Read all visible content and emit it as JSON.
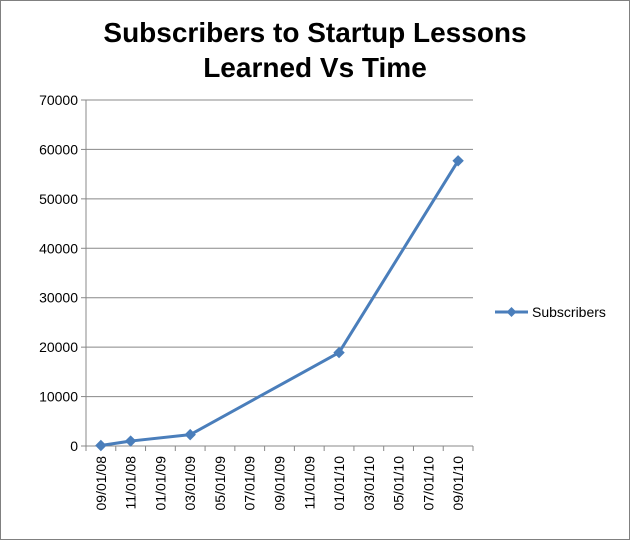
{
  "chart_data": {
    "type": "line",
    "title_lines": [
      "Subscribers to Startup Lessons",
      "Learned Vs Time"
    ],
    "xlabel": "",
    "ylabel": "",
    "x_ticks": [
      "09/01/08",
      "11/01/08",
      "01/01/09",
      "03/01/09",
      "05/01/09",
      "07/01/09",
      "09/01/09",
      "11/01/09",
      "01/01/10",
      "03/01/10",
      "05/01/10",
      "07/01/10",
      "09/01/10"
    ],
    "y_ticks": [
      "0",
      "10000",
      "20000",
      "30000",
      "40000",
      "50000",
      "60000",
      "70000"
    ],
    "ylim": [
      0,
      70000
    ],
    "grid": "horizontal",
    "legend_position": "right",
    "series": [
      {
        "name": "Subscribers",
        "color": "#4a7ebb",
        "marker": "diamond",
        "points": [
          {
            "x": "09/01/08",
            "y": 100
          },
          {
            "x": "11/01/08",
            "y": 1000
          },
          {
            "x": "03/01/09",
            "y": 2300
          },
          {
            "x": "01/01/10",
            "y": 18900
          },
          {
            "x": "09/01/10",
            "y": 57700
          }
        ]
      }
    ]
  }
}
